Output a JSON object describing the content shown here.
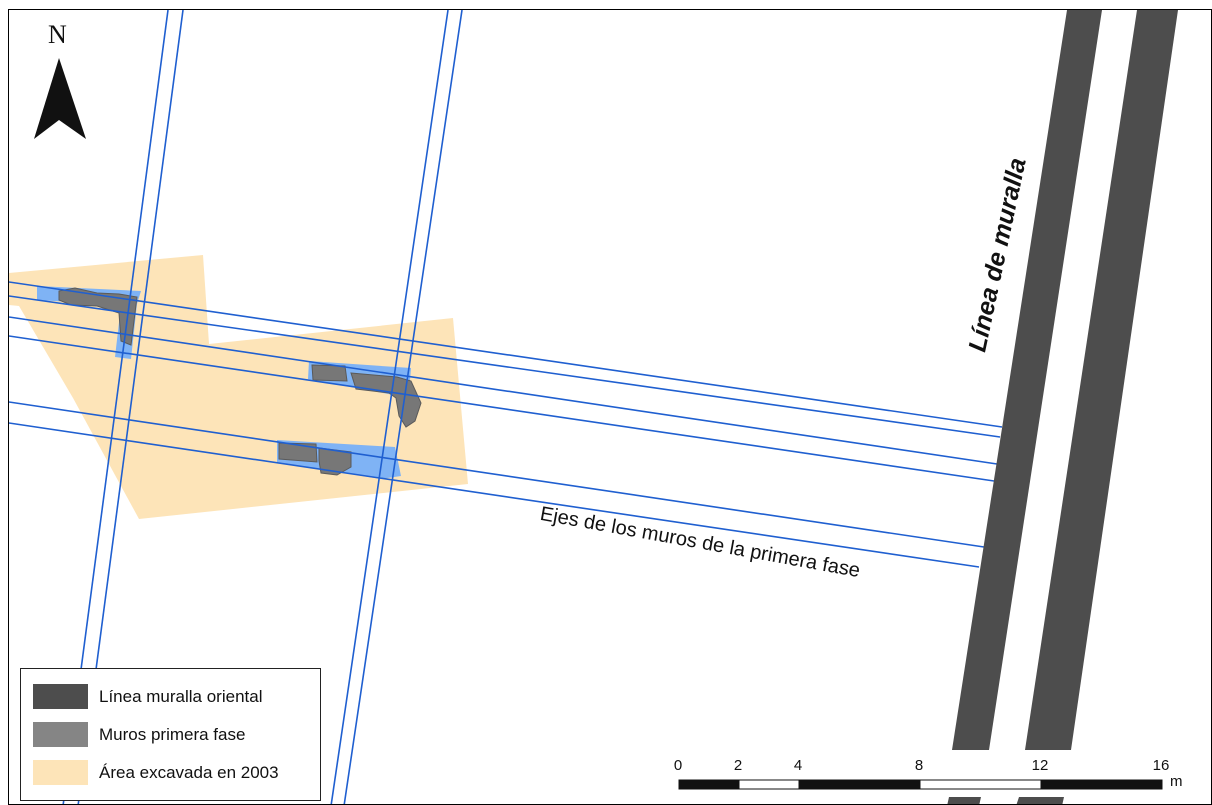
{
  "map": {
    "north_label": "N",
    "wall_line_label": "Línea de muralla",
    "axes_label": "Ejes de los muros de la primera fase"
  },
  "legend": {
    "items": [
      {
        "label": "Línea muralla oriental",
        "color": "#4d4d4d"
      },
      {
        "label": "Muros primera fase",
        "color": "#858585"
      },
      {
        "label": "Área excavada en 2003",
        "color": "#fde4b8"
      }
    ]
  },
  "scale_bar": {
    "ticks": [
      "0",
      "2",
      "4",
      "8",
      "12",
      "16"
    ],
    "unit": "m"
  },
  "colors": {
    "axis_line": "#1f5fd0",
    "wall_band": "#4d4d4d",
    "trench_fill": "#7fb3f5",
    "excavated_area": "#fde4b8",
    "wall_remains": "#7a7a7a"
  }
}
